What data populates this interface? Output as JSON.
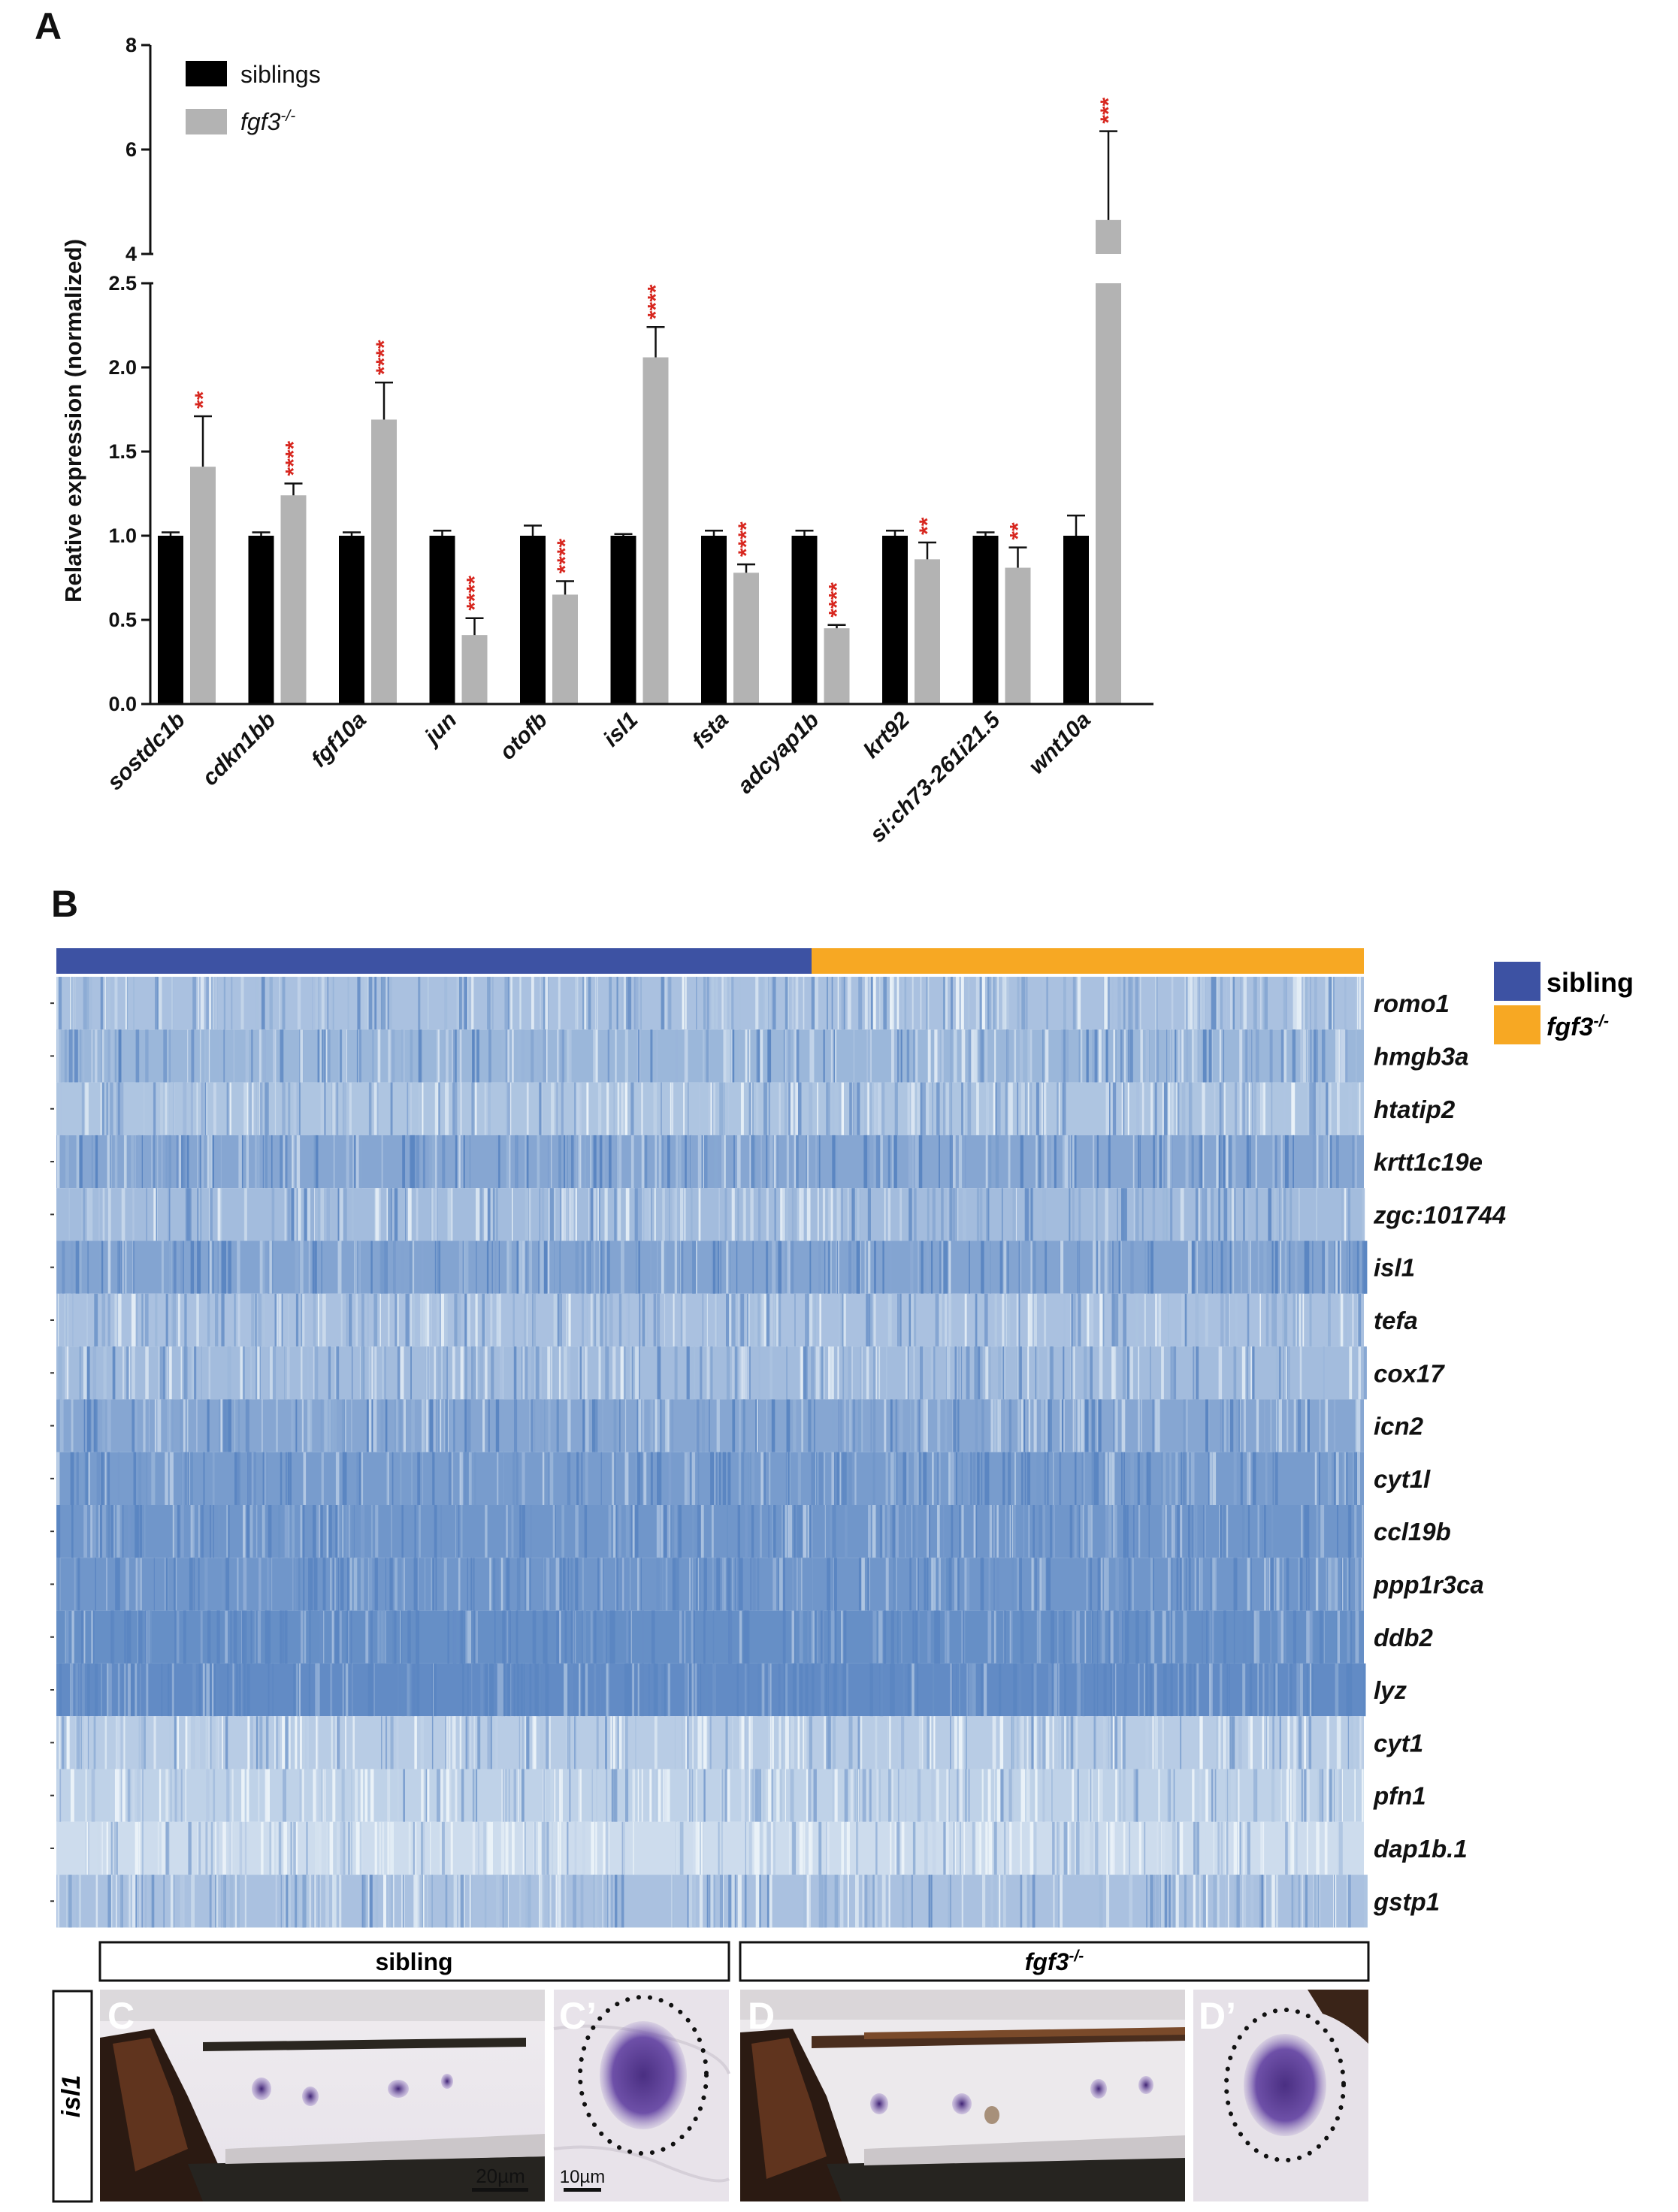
{
  "panel_labels": {
    "a": "A",
    "b": "B",
    "c": "C",
    "c_prime": "C’",
    "d": "D",
    "d_prime": "D’"
  },
  "colors": {
    "siblings_bar": "#000000",
    "mutant_bar": "#b3b3b3",
    "significance": "#d7261e",
    "sibling_band": "#3d52a3",
    "mutant_band": "#f7a823",
    "heat_dark": "#5b86c2",
    "heat_light": "#eaf2f8",
    "stain_purple": "#5a3a8f"
  },
  "chart_data": {
    "type": "bar",
    "categories": [
      "sostdc1b",
      "cdkn1bb",
      "fgf10a",
      "jun",
      "otofb",
      "isl1",
      "fsta",
      "adcyap1b",
      "krt92",
      "si:ch73-261i21.5",
      "wnt10a"
    ],
    "series": [
      {
        "name": "siblings",
        "values": [
          1.0,
          1.0,
          1.0,
          1.0,
          1.0,
          1.0,
          1.0,
          1.0,
          1.0,
          1.0,
          1.0
        ],
        "errors": [
          0.02,
          0.02,
          0.02,
          0.03,
          0.06,
          0.01,
          0.03,
          0.03,
          0.03,
          0.02,
          0.12
        ]
      },
      {
        "name": "fgf3",
        "name_superscript": "-/-",
        "values": [
          1.41,
          1.24,
          1.69,
          0.41,
          0.65,
          2.06,
          0.78,
          0.45,
          0.86,
          0.81,
          4.65
        ],
        "errors": [
          0.3,
          0.07,
          0.22,
          0.1,
          0.08,
          0.18,
          0.05,
          0.02,
          0.1,
          0.12,
          1.7
        ],
        "significance": [
          "**",
          "****",
          "****",
          "****",
          "****",
          "****",
          "****",
          "****",
          "**",
          "**",
          "***"
        ]
      }
    ],
    "ylabel": "Relative expression (normalized)",
    "ylim": [
      0,
      8
    ],
    "axis_break": [
      2.5,
      4
    ],
    "yticks_lower": [
      "0.0",
      "0.5",
      "1.0",
      "1.5",
      "2.0",
      "2.5"
    ],
    "yticks_upper": [
      "4",
      "6",
      "8"
    ],
    "legend_position": "top-left"
  },
  "heatmap": {
    "type": "heatmap",
    "groups": [
      {
        "name": "sibling"
      },
      {
        "name": "fgf3",
        "superscript": "-/-"
      }
    ],
    "genes": [
      "romo1",
      "hmgb3a",
      "htatip2",
      "krtt1c19e",
      "zgc:101744",
      "isl1",
      "tefa",
      "cox17",
      "icn2",
      "cyt1l",
      "ccl19b",
      "ppp1r3ca",
      "ddb2",
      "lyz",
      "cyt1",
      "pfn1",
      "dap1b.1",
      "gstp1"
    ],
    "gene_mean_intensity": [
      0.45,
      0.55,
      0.42,
      0.7,
      0.5,
      0.72,
      0.45,
      0.5,
      0.7,
      0.8,
      0.85,
      0.85,
      0.92,
      0.95,
      0.35,
      0.3,
      0.2,
      0.45
    ]
  },
  "ish": {
    "gene_label": "isl1",
    "sibling_header": "sibling",
    "mutant_header": "fgf3",
    "mutant_header_sup": "-/-",
    "scale_c": "20µm",
    "scale_c_prime": "10µm"
  }
}
